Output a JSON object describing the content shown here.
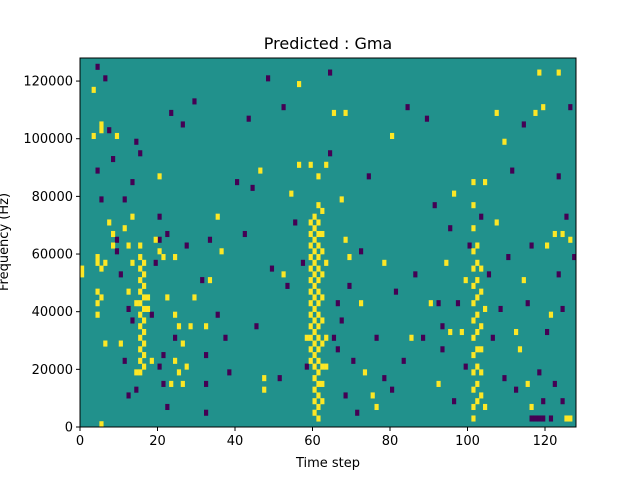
{
  "chart_data": {
    "type": "heatmap",
    "title": "Predicted : Gma",
    "xlabel": "Time step",
    "ylabel": "Frequency (Hz)",
    "xlim": [
      0,
      128
    ],
    "ylim": [
      0,
      128000
    ],
    "x_ticks": [
      0,
      20,
      40,
      60,
      80,
      100,
      120
    ],
    "y_ticks": [
      0,
      20000,
      40000,
      60000,
      80000,
      100000,
      120000
    ],
    "n_time_steps": 128,
    "n_freq_bins": 64,
    "colormap": "viridis",
    "value_levels": [
      0,
      1,
      2
    ],
    "level_colors": [
      "#440154",
      "#21918c",
      "#fde725"
    ],
    "background_level": 1,
    "cells_level_2_yellow": [
      [
        0,
        52000,
        2
      ],
      [
        0,
        54000,
        2
      ],
      [
        3,
        100000,
        2
      ],
      [
        3,
        116000,
        2
      ],
      [
        4,
        38000,
        2
      ],
      [
        4,
        42000,
        2
      ],
      [
        4,
        46000,
        2
      ],
      [
        4,
        56000,
        2
      ],
      [
        4,
        58000,
        2
      ],
      [
        5,
        0,
        2
      ],
      [
        5,
        44000,
        2
      ],
      [
        5,
        54000,
        2
      ],
      [
        5,
        102000,
        2
      ],
      [
        5,
        104000,
        2
      ],
      [
        6,
        56000,
        2
      ],
      [
        6,
        28000,
        2
      ],
      [
        7,
        70000,
        2
      ],
      [
        8,
        62000,
        2
      ],
      [
        8,
        66000,
        2
      ],
      [
        9,
        100000,
        2
      ],
      [
        10,
        28000,
        2
      ],
      [
        11,
        68000,
        2
      ],
      [
        12,
        46000,
        2
      ],
      [
        12,
        62000,
        2
      ],
      [
        13,
        72000,
        2
      ],
      [
        13,
        56000,
        2
      ],
      [
        14,
        42000,
        2
      ],
      [
        14,
        18000,
        2
      ],
      [
        15,
        18000,
        2
      ],
      [
        15,
        22000,
        2
      ],
      [
        15,
        26000,
        2
      ],
      [
        15,
        30000,
        2
      ],
      [
        15,
        34000,
        2
      ],
      [
        15,
        38000,
        2
      ],
      [
        15,
        42000,
        2
      ],
      [
        15,
        46000,
        2
      ],
      [
        15,
        50000,
        2
      ],
      [
        15,
        54000,
        2
      ],
      [
        15,
        58000,
        2
      ],
      [
        15,
        62000,
        2
      ],
      [
        16,
        20000,
        2
      ],
      [
        16,
        24000,
        2
      ],
      [
        16,
        28000,
        2
      ],
      [
        16,
        32000,
        2
      ],
      [
        16,
        36000,
        2
      ],
      [
        16,
        40000,
        2
      ],
      [
        16,
        44000,
        2
      ],
      [
        16,
        48000,
        2
      ],
      [
        16,
        52000,
        2
      ],
      [
        16,
        56000,
        2
      ],
      [
        17,
        40000,
        2
      ],
      [
        17,
        44000,
        2
      ],
      [
        18,
        22000,
        2
      ],
      [
        19,
        64000,
        2
      ],
      [
        20,
        86000,
        2
      ],
      [
        20,
        60000,
        2
      ],
      [
        21,
        58000,
        2
      ],
      [
        22,
        44000,
        2
      ],
      [
        23,
        14000,
        2
      ],
      [
        24,
        38000,
        2
      ],
      [
        24,
        58000,
        2
      ],
      [
        25,
        34000,
        2
      ],
      [
        26,
        28000,
        2
      ],
      [
        24,
        22000,
        2
      ],
      [
        25,
        18000,
        2
      ],
      [
        26,
        14000,
        2
      ],
      [
        27,
        20000,
        2
      ],
      [
        28,
        34000,
        2
      ],
      [
        29,
        44000,
        2
      ],
      [
        32,
        34000,
        2
      ],
      [
        33,
        50000,
        2
      ],
      [
        35,
        72000,
        2
      ],
      [
        36,
        60000,
        2
      ],
      [
        46,
        88000,
        2
      ],
      [
        47,
        12000,
        2
      ],
      [
        47,
        16000,
        2
      ],
      [
        52,
        52000,
        2
      ],
      [
        54,
        80000,
        2
      ],
      [
        56,
        118000,
        2
      ],
      [
        56,
        90000,
        2
      ],
      [
        58,
        30000,
        2
      ],
      [
        59,
        90000,
        2
      ],
      [
        59,
        70000,
        2
      ],
      [
        59,
        66000,
        2
      ],
      [
        59,
        62000,
        2
      ],
      [
        59,
        58000,
        2
      ],
      [
        59,
        54000,
        2
      ],
      [
        59,
        50000,
        2
      ],
      [
        59,
        46000,
        2
      ],
      [
        59,
        42000,
        2
      ],
      [
        59,
        38000,
        2
      ],
      [
        59,
        34000,
        2
      ],
      [
        59,
        30000,
        2
      ],
      [
        59,
        26000,
        2
      ],
      [
        59,
        22000,
        2
      ],
      [
        60,
        72000,
        2
      ],
      [
        60,
        68000,
        2
      ],
      [
        60,
        64000,
        2
      ],
      [
        60,
        60000,
        2
      ],
      [
        60,
        56000,
        2
      ],
      [
        60,
        52000,
        2
      ],
      [
        60,
        48000,
        2
      ],
      [
        60,
        44000,
        2
      ],
      [
        60,
        40000,
        2
      ],
      [
        60,
        36000,
        2
      ],
      [
        60,
        32000,
        2
      ],
      [
        60,
        28000,
        2
      ],
      [
        60,
        24000,
        2
      ],
      [
        60,
        20000,
        2
      ],
      [
        60,
        16000,
        2
      ],
      [
        60,
        12000,
        2
      ],
      [
        60,
        8000,
        2
      ],
      [
        60,
        4000,
        2
      ],
      [
        61,
        86000,
        2
      ],
      [
        61,
        76000,
        2
      ],
      [
        61,
        70000,
        2
      ],
      [
        61,
        66000,
        2
      ],
      [
        61,
        62000,
        2
      ],
      [
        61,
        58000,
        2
      ],
      [
        61,
        54000,
        2
      ],
      [
        61,
        50000,
        2
      ],
      [
        61,
        46000,
        2
      ],
      [
        61,
        42000,
        2
      ],
      [
        61,
        38000,
        2
      ],
      [
        61,
        34000,
        2
      ],
      [
        61,
        30000,
        2
      ],
      [
        61,
        26000,
        2
      ],
      [
        61,
        22000,
        2
      ],
      [
        61,
        18000,
        2
      ],
      [
        61,
        14000,
        2
      ],
      [
        61,
        10000,
        2
      ],
      [
        61,
        6000,
        2
      ],
      [
        61,
        2000,
        2
      ],
      [
        62,
        74000,
        2
      ],
      [
        62,
        66000,
        2
      ],
      [
        62,
        60000,
        2
      ],
      [
        62,
        52000,
        2
      ],
      [
        62,
        44000,
        2
      ],
      [
        62,
        36000,
        2
      ],
      [
        62,
        28000,
        2
      ],
      [
        62,
        20000,
        2
      ],
      [
        62,
        14000,
        2
      ],
      [
        62,
        8000,
        2
      ],
      [
        63,
        90000,
        2
      ],
      [
        63,
        56000,
        2
      ],
      [
        63,
        30000,
        2
      ],
      [
        63,
        20000,
        2
      ],
      [
        65,
        108000,
        2
      ],
      [
        67,
        78000,
        2
      ],
      [
        68,
        108000,
        2
      ],
      [
        68,
        64000,
        2
      ],
      [
        69,
        58000,
        2
      ],
      [
        72,
        42000,
        2
      ],
      [
        73,
        18000,
        2
      ],
      [
        75,
        10000,
        2
      ],
      [
        76,
        6000,
        2
      ],
      [
        78,
        56000,
        2
      ],
      [
        80,
        100000,
        2
      ],
      [
        85,
        30000,
        2
      ],
      [
        90,
        42000,
        2
      ],
      [
        92,
        14000,
        2
      ],
      [
        94,
        56000,
        2
      ],
      [
        95,
        32000,
        2
      ],
      [
        96,
        80000,
        2
      ],
      [
        98,
        32000,
        2
      ],
      [
        99,
        50000,
        2
      ],
      [
        101,
        84000,
        2
      ],
      [
        101,
        76000,
        2
      ],
      [
        101,
        68000,
        2
      ],
      [
        101,
        60000,
        2
      ],
      [
        101,
        54000,
        2
      ],
      [
        101,
        48000,
        2
      ],
      [
        101,
        42000,
        2
      ],
      [
        101,
        36000,
        2
      ],
      [
        101,
        30000,
        2
      ],
      [
        101,
        24000,
        2
      ],
      [
        101,
        18000,
        2
      ],
      [
        101,
        12000,
        2
      ],
      [
        101,
        6000,
        2
      ],
      [
        101,
        2000,
        2
      ],
      [
        102,
        62000,
        2
      ],
      [
        102,
        56000,
        2
      ],
      [
        102,
        50000,
        2
      ],
      [
        102,
        44000,
        2
      ],
      [
        102,
        38000,
        2
      ],
      [
        102,
        32000,
        2
      ],
      [
        102,
        26000,
        2
      ],
      [
        102,
        20000,
        2
      ],
      [
        102,
        14000,
        2
      ],
      [
        102,
        8000,
        2
      ],
      [
        103,
        54000,
        2
      ],
      [
        103,
        46000,
        2
      ],
      [
        103,
        34000,
        2
      ],
      [
        103,
        26000,
        2
      ],
      [
        103,
        18000,
        2
      ],
      [
        103,
        10000,
        2
      ],
      [
        104,
        40000,
        2
      ],
      [
        104,
        84000,
        2
      ],
      [
        104,
        6000,
        2
      ],
      [
        107,
        108000,
        2
      ],
      [
        107,
        70000,
        2
      ],
      [
        109,
        98000,
        2
      ],
      [
        112,
        32000,
        2
      ],
      [
        113,
        26000,
        2
      ],
      [
        114,
        50000,
        2
      ],
      [
        115,
        14000,
        2
      ],
      [
        116,
        6000,
        2
      ],
      [
        117,
        108000,
        2
      ],
      [
        118,
        122000,
        2
      ],
      [
        119,
        110000,
        2
      ],
      [
        120,
        62000,
        2
      ],
      [
        121,
        38000,
        2
      ],
      [
        122,
        66000,
        2
      ],
      [
        123,
        122000,
        2
      ],
      [
        124,
        66000,
        2
      ],
      [
        125,
        2000,
        2
      ],
      [
        126,
        2000,
        2
      ],
      [
        126,
        64000,
        2
      ]
    ],
    "cells_level_0_purple": [
      [
        4,
        124000,
        0
      ],
      [
        4,
        88000,
        0
      ],
      [
        5,
        78000,
        0
      ],
      [
        6,
        120000,
        0
      ],
      [
        7,
        102000,
        0
      ],
      [
        8,
        92000,
        0
      ],
      [
        9,
        64000,
        0
      ],
      [
        9,
        60000,
        0
      ],
      [
        10,
        52000,
        0
      ],
      [
        11,
        78000,
        0
      ],
      [
        11,
        22000,
        0
      ],
      [
        12,
        40000,
        0
      ],
      [
        12,
        10000,
        0
      ],
      [
        13,
        84000,
        0
      ],
      [
        13,
        36000,
        0
      ],
      [
        14,
        98000,
        0
      ],
      [
        14,
        12000,
        0
      ],
      [
        15,
        94000,
        0
      ],
      [
        18,
        38000,
        0
      ],
      [
        19,
        56000,
        0
      ],
      [
        20,
        72000,
        0
      ],
      [
        20,
        64000,
        0
      ],
      [
        20,
        20000,
        0
      ],
      [
        21,
        24000,
        0
      ],
      [
        21,
        14000,
        0
      ],
      [
        22,
        66000,
        0
      ],
      [
        22,
        6000,
        0
      ],
      [
        23,
        108000,
        0
      ],
      [
        24,
        30000,
        0
      ],
      [
        26,
        104000,
        0
      ],
      [
        27,
        62000,
        0
      ],
      [
        29,
        112000,
        0
      ],
      [
        31,
        50000,
        0
      ],
      [
        32,
        4000,
        0
      ],
      [
        32,
        24000,
        0
      ],
      [
        32,
        14000,
        0
      ],
      [
        33,
        64000,
        0
      ],
      [
        35,
        38000,
        0
      ],
      [
        37,
        30000,
        0
      ],
      [
        38,
        18000,
        0
      ],
      [
        40,
        84000,
        0
      ],
      [
        42,
        66000,
        0
      ],
      [
        43,
        106000,
        0
      ],
      [
        44,
        82000,
        0
      ],
      [
        45,
        34000,
        0
      ],
      [
        48,
        120000,
        0
      ],
      [
        49,
        54000,
        0
      ],
      [
        51,
        16000,
        0
      ],
      [
        52,
        110000,
        0
      ],
      [
        53,
        48000,
        0
      ],
      [
        55,
        70000,
        0
      ],
      [
        57,
        56000,
        0
      ],
      [
        58,
        20000,
        0
      ],
      [
        64,
        122000,
        0
      ],
      [
        64,
        94000,
        0
      ],
      [
        65,
        30000,
        0
      ],
      [
        66,
        42000,
        0
      ],
      [
        66,
        26000,
        0
      ],
      [
        67,
        36000,
        0
      ],
      [
        68,
        10000,
        0
      ],
      [
        69,
        48000,
        0
      ],
      [
        70,
        22000,
        0
      ],
      [
        71,
        4000,
        0
      ],
      [
        72,
        60000,
        0
      ],
      [
        74,
        86000,
        0
      ],
      [
        76,
        30000,
        0
      ],
      [
        78,
        16000,
        0
      ],
      [
        80,
        12000,
        0
      ],
      [
        81,
        46000,
        0
      ],
      [
        83,
        22000,
        0
      ],
      [
        84,
        110000,
        0
      ],
      [
        86,
        52000,
        0
      ],
      [
        88,
        30000,
        0
      ],
      [
        89,
        106000,
        0
      ],
      [
        91,
        76000,
        0
      ],
      [
        92,
        42000,
        0
      ],
      [
        93,
        26000,
        0
      ],
      [
        93,
        34000,
        0
      ],
      [
        95,
        68000,
        0
      ],
      [
        96,
        8000,
        0
      ],
      [
        97,
        42000,
        0
      ],
      [
        99,
        20000,
        0
      ],
      [
        100,
        62000,
        0
      ],
      [
        103,
        72000,
        0
      ],
      [
        105,
        52000,
        0
      ],
      [
        106,
        30000,
        0
      ],
      [
        108,
        40000,
        0
      ],
      [
        109,
        16000,
        0
      ],
      [
        110,
        58000,
        0
      ],
      [
        111,
        88000,
        0
      ],
      [
        112,
        12000,
        0
      ],
      [
        114,
        104000,
        0
      ],
      [
        115,
        42000,
        0
      ],
      [
        116,
        62000,
        0
      ],
      [
        116,
        2000,
        0
      ],
      [
        117,
        2000,
        0
      ],
      [
        118,
        2000,
        0
      ],
      [
        118,
        18000,
        0
      ],
      [
        119,
        2000,
        0
      ],
      [
        119,
        8000,
        0
      ],
      [
        120,
        32000,
        0
      ],
      [
        121,
        2000,
        0
      ],
      [
        122,
        14000,
        0
      ],
      [
        123,
        52000,
        0
      ],
      [
        123,
        86000,
        0
      ],
      [
        124,
        8000,
        0
      ],
      [
        124,
        40000,
        0
      ],
      [
        125,
        72000,
        0
      ],
      [
        126,
        110000,
        0
      ],
      [
        127,
        58000,
        0
      ]
    ]
  }
}
